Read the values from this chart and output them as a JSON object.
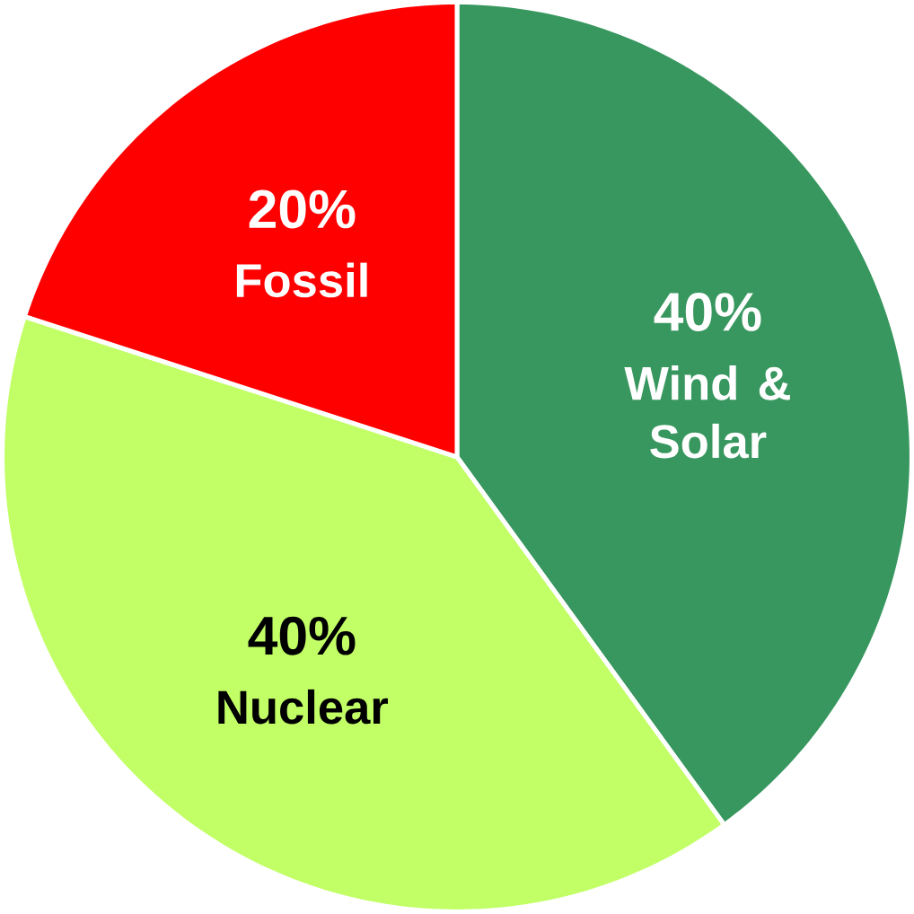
{
  "chart_data": {
    "type": "pie",
    "categories": [
      "Wind & Solar",
      "Nuclear",
      "Fossil"
    ],
    "values": [
      40,
      40,
      20
    ],
    "colors": [
      "#38975f",
      "#c2ff66",
      "#ff0000"
    ],
    "value_labels": [
      "40%",
      "40%",
      "20%"
    ]
  }
}
